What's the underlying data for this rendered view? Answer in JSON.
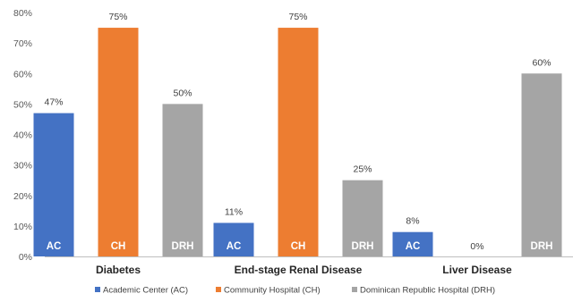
{
  "chart_data": {
    "type": "bar",
    "categories": [
      "Diabetes",
      "End-stage Renal Disease",
      "Liver Disease"
    ],
    "series": [
      {
        "name": "Academic Center (AC)",
        "short": "AC",
        "color": "#4472C4",
        "values": [
          47,
          11,
          8
        ]
      },
      {
        "name": "Community Hospital (CH)",
        "short": "CH",
        "color": "#ED7D31",
        "values": [
          75,
          75,
          0
        ]
      },
      {
        "name": "Dominican Republic Hospital (DRH)",
        "short": "DRH",
        "color": "#A5A5A5",
        "values": [
          50,
          25,
          60
        ]
      }
    ],
    "data_labels": [
      [
        "47%",
        "75%",
        "50%"
      ],
      [
        "11%",
        "75%",
        "25%"
      ],
      [
        "8%",
        "0%",
        "60%"
      ]
    ],
    "y_ticks": [
      0,
      10,
      20,
      30,
      40,
      50,
      60,
      70,
      80
    ],
    "y_tick_labels": [
      "0%",
      "10%",
      "20%",
      "30%",
      "40%",
      "50%",
      "60%",
      "70%",
      "80%"
    ],
    "ylim": [
      0,
      80
    ],
    "grid": false,
    "legend_position": "bottom",
    "title": "",
    "xlabel": "",
    "ylabel": ""
  }
}
